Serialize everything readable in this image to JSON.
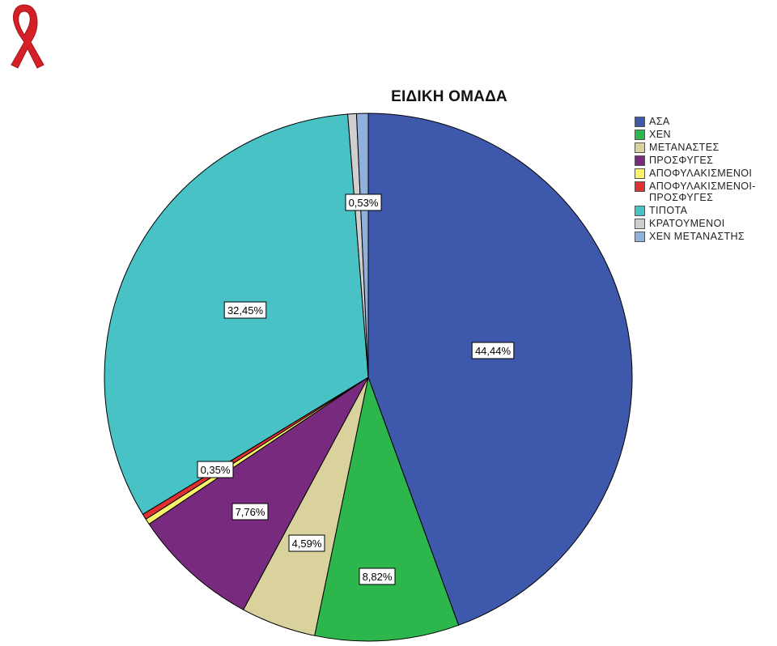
{
  "chart_data": {
    "type": "pie",
    "title": "ΕΙΔΙΚΗ ΟΜΑΔΑ",
    "slices": [
      {
        "label": "ΑΣΑ",
        "value": 44.44,
        "color": "#3e58ab",
        "data_label": "44,44%"
      },
      {
        "label": "ΧΕΝ",
        "value": 8.82,
        "color": "#2db64b",
        "data_label": "8,82%"
      },
      {
        "label": "ΜΕΤΑΝΑΣΤΕΣ",
        "value": 4.59,
        "color": "#d9d29c",
        "data_label": "4,59%"
      },
      {
        "label": "ΠΡΟΣΦΥΓΕΣ",
        "value": 7.76,
        "color": "#782b7e",
        "data_label": "7,76%"
      },
      {
        "label": "ΑΠΟΦΥΛΑΚΙΣΜΕΝΟΙ",
        "value": 0.35,
        "color": "#fbf26c",
        "data_label": "0,35%"
      },
      {
        "label": "ΑΠΟΦΥΛΑΚΙΣΜΕΝΟΙ-\nΠΡΟΣΦΥΓΕΣ",
        "value": 0.35,
        "color": "#e03131",
        "data_label": ""
      },
      {
        "label": "ΤΙΠΟΤΑ",
        "value": 32.45,
        "color": "#48c2c5",
        "data_label": "32,45%"
      },
      {
        "label": "ΚΡΑΤΟΥΜΕΝΟΙ",
        "value": 0.53,
        "color": "#cfcfcf",
        "data_label": "0,53%"
      },
      {
        "label": "ΧΕΝ ΜΕΤΑΝΑΣΤΗΣ",
        "value": 0.71,
        "color": "#8fb1dc",
        "data_label": ""
      }
    ],
    "legend_position": "right",
    "start_angle": "top, clockwise"
  },
  "logo": {
    "icon": "awareness-ribbon-icon",
    "color": "#d42027"
  }
}
